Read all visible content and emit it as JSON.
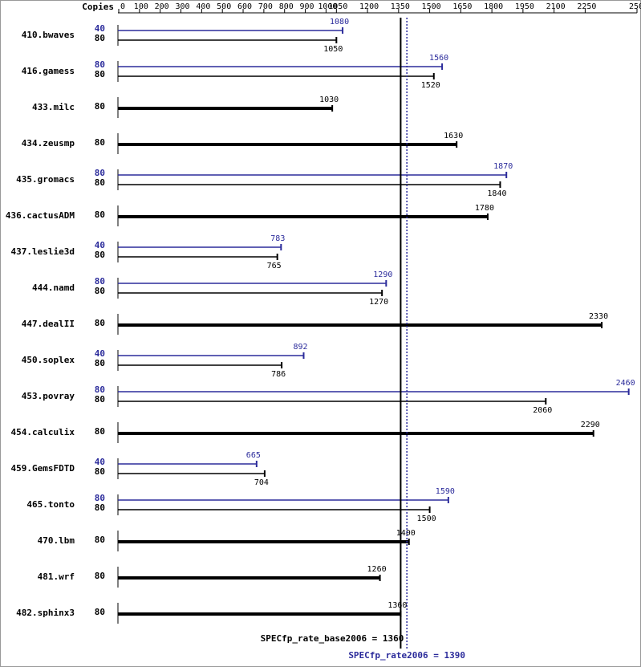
{
  "chart_data": {
    "type": "spec-bar",
    "copies_label": "Copies",
    "xlim": [
      0,
      2500
    ],
    "xticks": [
      0,
      100,
      200,
      300,
      400,
      500,
      600,
      700,
      800,
      900,
      1000,
      1050,
      1200,
      1350,
      1500,
      1650,
      1800,
      1950,
      2100,
      2250,
      2500
    ],
    "base_color": "#000000",
    "peak_color": "#2b2b9b",
    "benchmarks": [
      {
        "name": "410.bwaves",
        "peak": {
          "copies": 40,
          "value": 1080
        },
        "base": {
          "copies": 80,
          "value": 1050
        }
      },
      {
        "name": "416.gamess",
        "peak": {
          "copies": 80,
          "value": 1560
        },
        "base": {
          "copies": 80,
          "value": 1520
        }
      },
      {
        "name": "433.milc",
        "base": {
          "copies": 80,
          "value": 1030
        }
      },
      {
        "name": "434.zeusmp",
        "base": {
          "copies": 80,
          "value": 1630
        }
      },
      {
        "name": "435.gromacs",
        "peak": {
          "copies": 80,
          "value": 1870
        },
        "base": {
          "copies": 80,
          "value": 1840
        }
      },
      {
        "name": "436.cactusADM",
        "base": {
          "copies": 80,
          "value": 1780
        }
      },
      {
        "name": "437.leslie3d",
        "peak": {
          "copies": 40,
          "value": 783
        },
        "base": {
          "copies": 80,
          "value": 765
        }
      },
      {
        "name": "444.namd",
        "peak": {
          "copies": 80,
          "value": 1290
        },
        "base": {
          "copies": 80,
          "value": 1270
        }
      },
      {
        "name": "447.dealII",
        "base": {
          "copies": 80,
          "value": 2330
        }
      },
      {
        "name": "450.soplex",
        "peak": {
          "copies": 40,
          "value": 892
        },
        "base": {
          "copies": 80,
          "value": 786
        }
      },
      {
        "name": "453.povray",
        "peak": {
          "copies": 80,
          "value": 2460
        },
        "base": {
          "copies": 80,
          "value": 2060
        }
      },
      {
        "name": "454.calculix",
        "base": {
          "copies": 80,
          "value": 2290
        }
      },
      {
        "name": "459.GemsFDTD",
        "peak": {
          "copies": 40,
          "value": 665
        },
        "base": {
          "copies": 80,
          "value": 704
        }
      },
      {
        "name": "465.tonto",
        "peak": {
          "copies": 80,
          "value": 1590
        },
        "base": {
          "copies": 80,
          "value": 1500
        }
      },
      {
        "name": "470.lbm",
        "base": {
          "copies": 80,
          "value": 1400
        }
      },
      {
        "name": "481.wrf",
        "base": {
          "copies": 80,
          "value": 1260
        }
      },
      {
        "name": "482.sphinx3",
        "base": {
          "copies": 80,
          "value": 1360
        }
      }
    ],
    "base_metric": {
      "label": "SPECfp_rate_base2006 = 1360",
      "value": 1360
    },
    "peak_metric": {
      "label": "SPECfp_rate2006 = 1390",
      "value": 1390
    }
  }
}
